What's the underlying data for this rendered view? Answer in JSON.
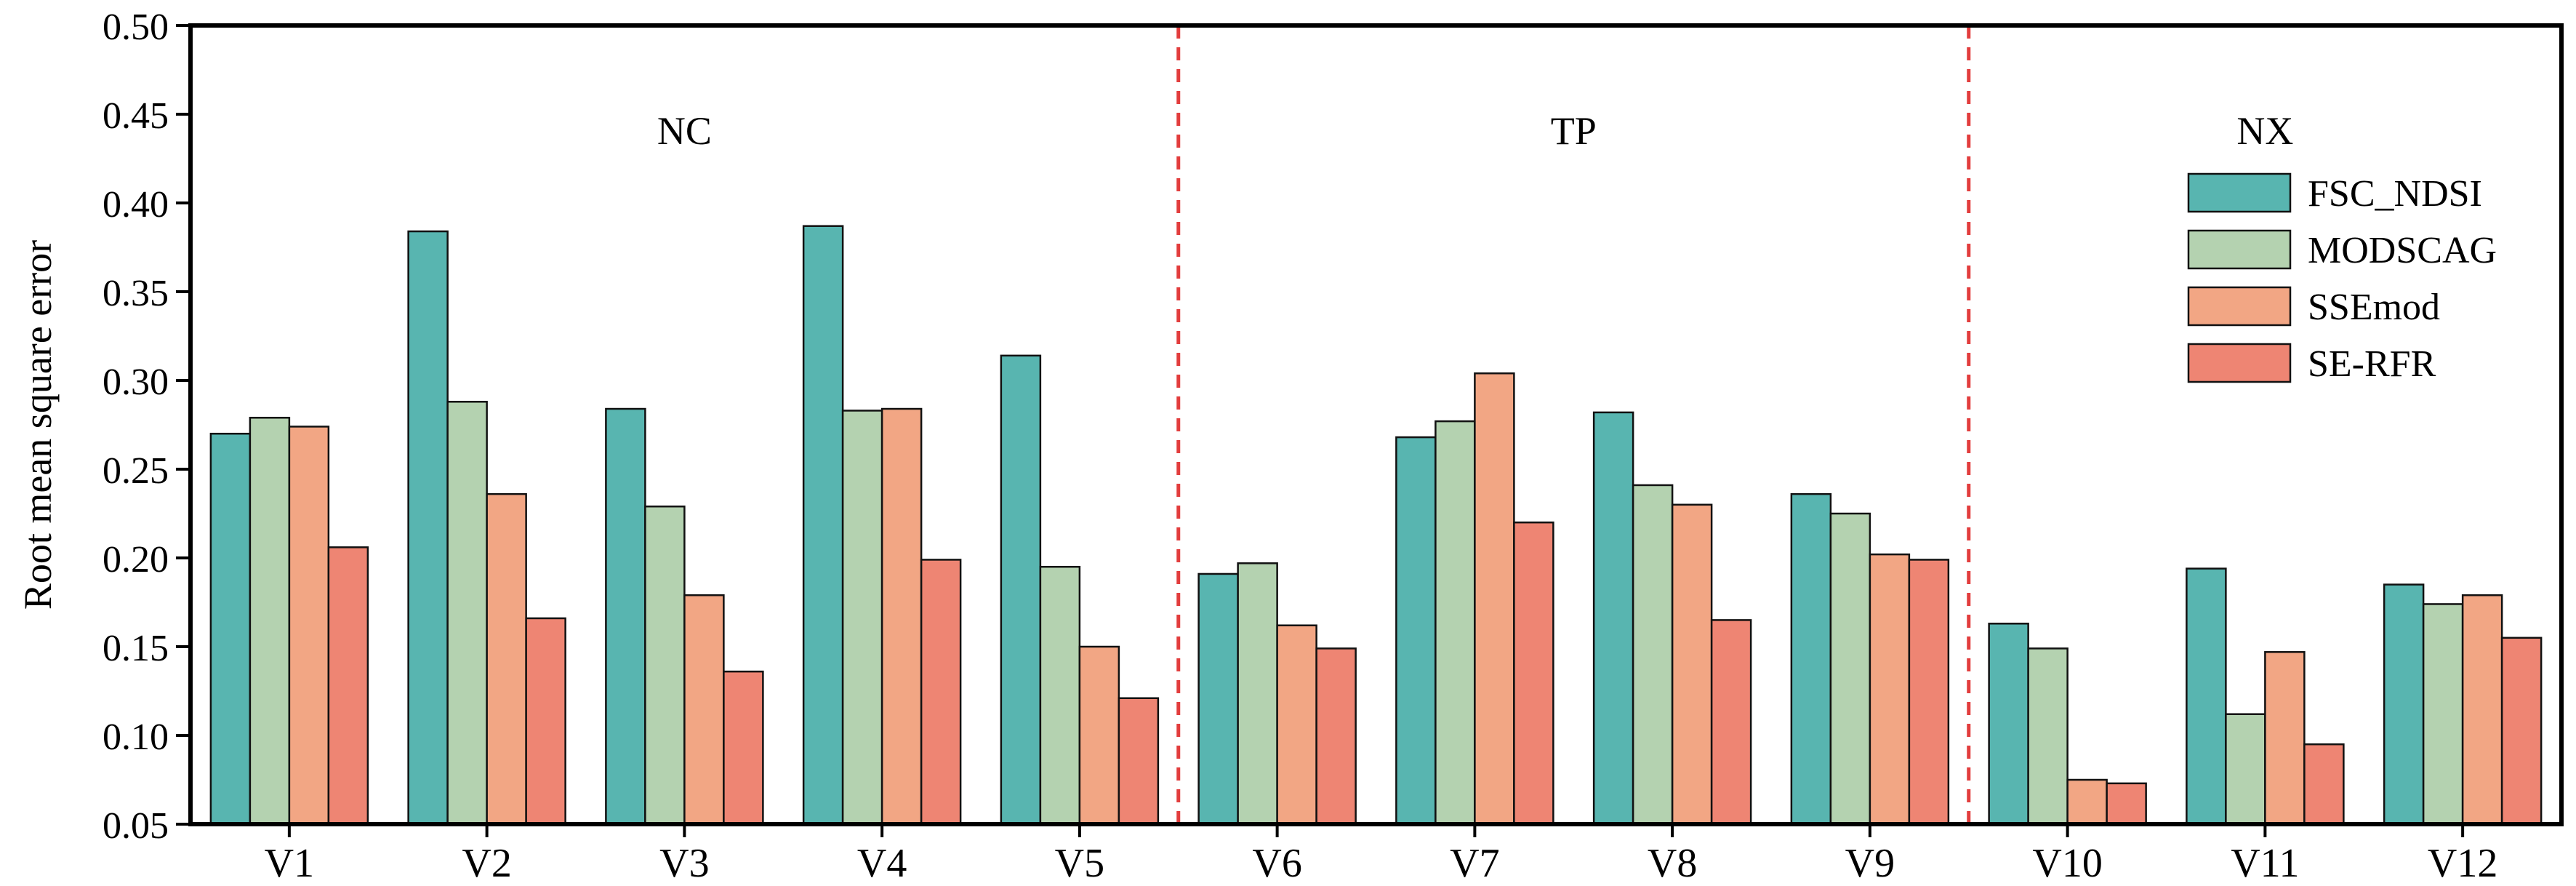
{
  "chart_data": {
    "type": "bar",
    "ylabel": "Root mean square error",
    "ylim": [
      0.05,
      0.5
    ],
    "yticks": [
      "0.05",
      "0.10",
      "0.15",
      "0.20",
      "0.25",
      "0.30",
      "0.35",
      "0.40",
      "0.45",
      "0.50"
    ],
    "categories": [
      "V1",
      "V2",
      "V3",
      "V4",
      "V5",
      "V6",
      "V7",
      "V8",
      "V9",
      "V10",
      "V11",
      "V12"
    ],
    "series": [
      {
        "name": "FSC_NDSI",
        "color": "#58b5b0",
        "values": [
          0.27,
          0.384,
          0.284,
          0.387,
          0.314,
          0.191,
          0.268,
          0.282,
          0.236,
          0.163,
          0.194,
          0.185
        ]
      },
      {
        "name": "MODSCAG",
        "color": "#b4d2b0",
        "values": [
          0.279,
          0.288,
          0.229,
          0.283,
          0.195,
          0.197,
          0.277,
          0.241,
          0.225,
          0.149,
          0.112,
          0.174
        ]
      },
      {
        "name": "SSEmod",
        "color": "#f2a684",
        "values": [
          0.274,
          0.236,
          0.179,
          0.284,
          0.15,
          0.162,
          0.304,
          0.23,
          0.202,
          0.075,
          0.147,
          0.179
        ]
      },
      {
        "name": "SE-RFR",
        "color": "#ee8573",
        "values": [
          0.206,
          0.166,
          0.136,
          0.199,
          0.121,
          0.149,
          0.22,
          0.165,
          0.199,
          0.073,
          0.095,
          0.155
        ]
      }
    ],
    "groups": [
      {
        "label": "NC",
        "categories": [
          "V1",
          "V2",
          "V3",
          "V4",
          "V5"
        ]
      },
      {
        "label": "TP",
        "categories": [
          "V6",
          "V7",
          "V8",
          "V9"
        ]
      },
      {
        "label": "NX",
        "categories": [
          "V10",
          "V11",
          "V12"
        ]
      }
    ],
    "separator_color": "#e23d3d",
    "legend_position": "right",
    "grid": false
  }
}
